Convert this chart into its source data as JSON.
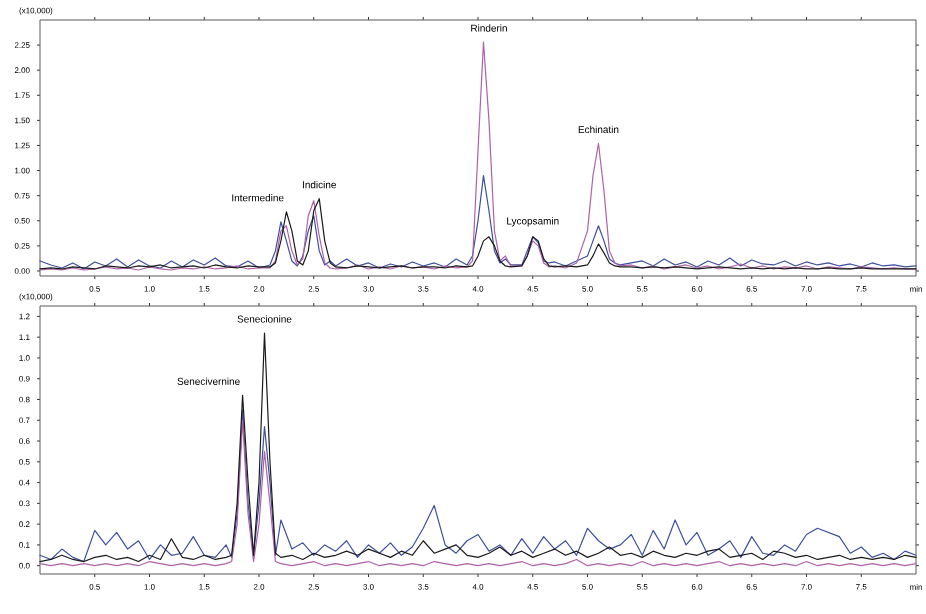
{
  "chart_data": [
    {
      "type": "line",
      "ylabel": "(x10,000)",
      "xlabel": "min",
      "x": [
        0.0,
        0.1,
        0.2,
        0.3,
        0.4,
        0.5,
        0.6,
        0.7,
        0.8,
        0.9,
        1.0,
        1.1,
        1.2,
        1.3,
        1.4,
        1.5,
        1.6,
        1.7,
        1.8,
        1.9,
        2.0,
        2.1,
        2.15,
        2.2,
        2.25,
        2.3,
        2.35,
        2.4,
        2.45,
        2.5,
        2.55,
        2.6,
        2.65,
        2.7,
        2.8,
        2.9,
        3.0,
        3.1,
        3.2,
        3.3,
        3.4,
        3.5,
        3.6,
        3.7,
        3.8,
        3.9,
        3.95,
        4.0,
        4.05,
        4.1,
        4.15,
        4.2,
        4.25,
        4.3,
        4.4,
        4.45,
        4.5,
        4.55,
        4.6,
        4.65,
        4.7,
        4.8,
        4.9,
        5.0,
        5.05,
        5.1,
        5.15,
        5.2,
        5.25,
        5.3,
        5.4,
        5.5,
        5.6,
        5.7,
        5.8,
        5.9,
        6.0,
        6.1,
        6.2,
        6.3,
        6.4,
        6.5,
        6.6,
        6.7,
        6.8,
        6.9,
        7.0,
        7.1,
        7.2,
        7.3,
        7.4,
        7.5,
        7.6,
        7.7,
        7.8,
        7.9,
        8.0
      ],
      "series": [
        {
          "color": "#3d4f9f",
          "values": [
            0.1,
            0.06,
            0.03,
            0.08,
            0.02,
            0.09,
            0.05,
            0.12,
            0.04,
            0.11,
            0.05,
            0.03,
            0.1,
            0.04,
            0.11,
            0.06,
            0.13,
            0.05,
            0.04,
            0.1,
            0.03,
            0.06,
            0.2,
            0.49,
            0.3,
            0.1,
            0.05,
            0.15,
            0.4,
            0.55,
            0.2,
            0.06,
            0.1,
            0.05,
            0.12,
            0.05,
            0.08,
            0.03,
            0.07,
            0.04,
            0.09,
            0.05,
            0.08,
            0.04,
            0.12,
            0.06,
            0.15,
            0.5,
            0.95,
            0.6,
            0.2,
            0.08,
            0.12,
            0.06,
            0.06,
            0.2,
            0.34,
            0.28,
            0.1,
            0.08,
            0.09,
            0.05,
            0.1,
            0.15,
            0.3,
            0.45,
            0.3,
            0.12,
            0.08,
            0.06,
            0.08,
            0.1,
            0.05,
            0.12,
            0.06,
            0.09,
            0.04,
            0.1,
            0.06,
            0.13,
            0.05,
            0.11,
            0.07,
            0.06,
            0.1,
            0.05,
            0.09,
            0.06,
            0.08,
            0.05,
            0.07,
            0.04,
            0.08,
            0.05,
            0.06,
            0.04,
            0.05
          ]
        },
        {
          "color": "#b060a8",
          "values": [
            0.01,
            0.02,
            0.01,
            0.03,
            0.01,
            0.02,
            0.04,
            0.02,
            0.03,
            0.01,
            0.04,
            0.02,
            0.01,
            0.03,
            0.02,
            0.04,
            0.02,
            0.03,
            0.05,
            0.02,
            0.03,
            0.03,
            0.1,
            0.4,
            0.45,
            0.2,
            0.06,
            0.12,
            0.55,
            0.7,
            0.35,
            0.08,
            0.03,
            0.02,
            0.03,
            0.06,
            0.02,
            0.04,
            0.02,
            0.05,
            0.03,
            0.04,
            0.02,
            0.05,
            0.03,
            0.04,
            0.1,
            1.2,
            2.28,
            1.5,
            0.4,
            0.1,
            0.15,
            0.05,
            0.05,
            0.15,
            0.3,
            0.25,
            0.08,
            0.04,
            0.05,
            0.03,
            0.08,
            0.4,
            0.95,
            1.27,
            0.8,
            0.2,
            0.08,
            0.05,
            0.06,
            0.03,
            0.05,
            0.02,
            0.04,
            0.06,
            0.03,
            0.05,
            0.02,
            0.04,
            0.07,
            0.03,
            0.05,
            0.02,
            0.04,
            0.03,
            0.05,
            0.02,
            0.04,
            0.03,
            0.02,
            0.04,
            0.03,
            0.02,
            0.03,
            0.02,
            0.02
          ]
        },
        {
          "color": "#1a1a1a",
          "values": [
            0.02,
            0.03,
            0.02,
            0.04,
            0.03,
            0.02,
            0.05,
            0.04,
            0.03,
            0.05,
            0.04,
            0.06,
            0.03,
            0.04,
            0.05,
            0.03,
            0.06,
            0.04,
            0.03,
            0.05,
            0.04,
            0.04,
            0.08,
            0.3,
            0.59,
            0.4,
            0.1,
            0.06,
            0.2,
            0.6,
            0.72,
            0.3,
            0.08,
            0.04,
            0.03,
            0.05,
            0.04,
            0.03,
            0.04,
            0.05,
            0.03,
            0.04,
            0.04,
            0.03,
            0.05,
            0.04,
            0.05,
            0.15,
            0.3,
            0.34,
            0.25,
            0.1,
            0.05,
            0.04,
            0.05,
            0.15,
            0.34,
            0.3,
            0.12,
            0.05,
            0.04,
            0.05,
            0.04,
            0.06,
            0.15,
            0.27,
            0.18,
            0.08,
            0.05,
            0.04,
            0.04,
            0.03,
            0.04,
            0.03,
            0.04,
            0.03,
            0.02,
            0.03,
            0.04,
            0.03,
            0.02,
            0.03,
            0.02,
            0.03,
            0.02,
            0.03,
            0.02,
            0.02,
            0.03,
            0.02,
            0.02,
            0.03,
            0.02,
            0.02,
            0.02,
            0.02,
            0.02
          ]
        }
      ],
      "xlim": [
        0,
        8.0
      ],
      "ylim": [
        -0.05,
        2.5
      ],
      "xticks": [
        {
          "value": 0.5,
          "label": "0.5"
        },
        {
          "value": 1.0,
          "label": "1.0"
        },
        {
          "value": 1.5,
          "label": "1.5"
        },
        {
          "value": 2.0,
          "label": "2.0"
        },
        {
          "value": 2.5,
          "label": "2.5"
        },
        {
          "value": 3.0,
          "label": "3.0"
        },
        {
          "value": 3.5,
          "label": "3.5"
        },
        {
          "value": 4.0,
          "label": "4.0"
        },
        {
          "value": 4.5,
          "label": "4.5"
        },
        {
          "value": 5.0,
          "label": "5.0"
        },
        {
          "value": 5.5,
          "label": "5.5"
        },
        {
          "value": 6.0,
          "label": "6.0"
        },
        {
          "value": 6.5,
          "label": "6.5"
        },
        {
          "value": 7.0,
          "label": "7.0"
        },
        {
          "value": 7.5,
          "label": "7.5"
        }
      ],
      "yticks": [
        {
          "value": 0,
          "label": "0.00"
        },
        {
          "value": 0.25,
          "label": "0.25"
        },
        {
          "value": 0.5,
          "label": "0.50"
        },
        {
          "value": 0.75,
          "label": "0.75"
        },
        {
          "value": 1.0,
          "label": "1.00"
        },
        {
          "value": 1.25,
          "label": "1.25"
        },
        {
          "value": 1.5,
          "label": "1.50"
        },
        {
          "value": 1.75,
          "label": "1.75"
        },
        {
          "value": 2.0,
          "label": "2.00"
        },
        {
          "value": 2.25,
          "label": "2.25"
        }
      ],
      "annotations": [
        {
          "text": "Intermedine",
          "x": 2.25,
          "y": 0.59
        },
        {
          "text": "Indicine",
          "x": 2.55,
          "y": 0.72
        },
        {
          "text": "Rinderin",
          "x": 4.1,
          "y": 2.28
        },
        {
          "text": "Lycopsamin",
          "x": 4.5,
          "y": 0.34
        },
        {
          "text": "Echinatin",
          "x": 5.1,
          "y": 1.27
        }
      ]
    },
    {
      "type": "line",
      "ylabel": "(x10,000)",
      "xlabel": "min",
      "x": [
        0.0,
        0.1,
        0.2,
        0.3,
        0.4,
        0.5,
        0.6,
        0.7,
        0.8,
        0.9,
        1.0,
        1.1,
        1.2,
        1.3,
        1.4,
        1.5,
        1.6,
        1.7,
        1.75,
        1.8,
        1.85,
        1.9,
        1.95,
        2.0,
        2.05,
        2.1,
        2.15,
        2.2,
        2.3,
        2.4,
        2.5,
        2.6,
        2.7,
        2.8,
        2.9,
        3.0,
        3.1,
        3.2,
        3.3,
        3.4,
        3.5,
        3.6,
        3.7,
        3.8,
        3.9,
        4.0,
        4.1,
        4.2,
        4.3,
        4.4,
        4.5,
        4.6,
        4.7,
        4.8,
        4.9,
        5.0,
        5.1,
        5.2,
        5.3,
        5.4,
        5.5,
        5.6,
        5.7,
        5.8,
        5.9,
        6.0,
        6.1,
        6.2,
        6.3,
        6.4,
        6.5,
        6.6,
        6.7,
        6.8,
        6.9,
        7.0,
        7.1,
        7.2,
        7.3,
        7.4,
        7.5,
        7.6,
        7.7,
        7.8,
        7.9,
        8.0
      ],
      "series": [
        {
          "color": "#3d4f9f",
          "values": [
            0.05,
            0.03,
            0.08,
            0.04,
            0.02,
            0.17,
            0.1,
            0.16,
            0.08,
            0.12,
            0.03,
            0.1,
            0.05,
            0.06,
            0.14,
            0.05,
            0.04,
            0.1,
            0.04,
            0.25,
            0.75,
            0.3,
            0.05,
            0.3,
            0.67,
            0.4,
            0.05,
            0.22,
            0.08,
            0.11,
            0.05,
            0.1,
            0.07,
            0.12,
            0.04,
            0.1,
            0.06,
            0.11,
            0.05,
            0.09,
            0.18,
            0.29,
            0.1,
            0.06,
            0.12,
            0.15,
            0.07,
            0.1,
            0.05,
            0.13,
            0.06,
            0.14,
            0.08,
            0.12,
            0.05,
            0.18,
            0.12,
            0.08,
            0.1,
            0.15,
            0.05,
            0.17,
            0.08,
            0.22,
            0.1,
            0.16,
            0.05,
            0.08,
            0.12,
            0.04,
            0.14,
            0.06,
            0.05,
            0.1,
            0.07,
            0.15,
            0.18,
            0.16,
            0.14,
            0.06,
            0.09,
            0.04,
            0.06,
            0.03,
            0.07,
            0.05
          ]
        },
        {
          "color": "#b060a8",
          "values": [
            0.01,
            0.0,
            0.01,
            0.0,
            0.01,
            0.0,
            0.01,
            0.0,
            0.01,
            0.0,
            0.02,
            0.01,
            0.0,
            0.01,
            0.0,
            0.01,
            0.0,
            0.01,
            0.02,
            0.2,
            0.7,
            0.25,
            0.02,
            0.2,
            0.55,
            0.3,
            0.02,
            0.01,
            0.0,
            0.01,
            0.02,
            0.0,
            0.01,
            0.0,
            0.01,
            0.02,
            0.0,
            0.01,
            0.0,
            0.01,
            0.0,
            0.02,
            0.01,
            0.0,
            0.01,
            0.0,
            0.01,
            0.0,
            0.01,
            0.02,
            0.0,
            0.01,
            0.0,
            0.01,
            0.03,
            0.0,
            0.01,
            0.0,
            0.01,
            0.0,
            0.02,
            0.0,
            0.01,
            0.0,
            0.01,
            0.0,
            0.01,
            0.02,
            0.0,
            0.01,
            0.0,
            0.01,
            0.0,
            0.01,
            0.0,
            0.02,
            0.0,
            0.01,
            0.0,
            0.01,
            0.0,
            0.01,
            0.0,
            0.01,
            0.0,
            0.01
          ]
        },
        {
          "color": "#1a1a1a",
          "values": [
            0.02,
            0.03,
            0.05,
            0.03,
            0.02,
            0.04,
            0.05,
            0.03,
            0.04,
            0.02,
            0.05,
            0.03,
            0.13,
            0.04,
            0.03,
            0.05,
            0.03,
            0.04,
            0.05,
            0.3,
            0.82,
            0.4,
            0.05,
            0.4,
            1.12,
            0.5,
            0.06,
            0.04,
            0.05,
            0.03,
            0.06,
            0.04,
            0.05,
            0.07,
            0.05,
            0.08,
            0.06,
            0.04,
            0.07,
            0.05,
            0.12,
            0.06,
            0.08,
            0.1,
            0.05,
            0.04,
            0.06,
            0.09,
            0.05,
            0.07,
            0.04,
            0.06,
            0.08,
            0.05,
            0.07,
            0.04,
            0.06,
            0.09,
            0.05,
            0.06,
            0.04,
            0.07,
            0.05,
            0.04,
            0.06,
            0.05,
            0.07,
            0.08,
            0.04,
            0.05,
            0.06,
            0.03,
            0.07,
            0.06,
            0.04,
            0.05,
            0.03,
            0.04,
            0.05,
            0.03,
            0.04,
            0.03,
            0.04,
            0.03,
            0.05,
            0.04
          ]
        }
      ],
      "xlim": [
        0,
        8.0
      ],
      "ylim": [
        -0.04,
        1.25
      ],
      "xticks": [
        {
          "value": 0.5,
          "label": "0.5"
        },
        {
          "value": 1.0,
          "label": "1.0"
        },
        {
          "value": 1.5,
          "label": "1.5"
        },
        {
          "value": 2.0,
          "label": "2.0"
        },
        {
          "value": 2.5,
          "label": "2.5"
        },
        {
          "value": 3.0,
          "label": "3.0"
        },
        {
          "value": 3.5,
          "label": "3.5"
        },
        {
          "value": 4.0,
          "label": "4.0"
        },
        {
          "value": 4.5,
          "label": "4.5"
        },
        {
          "value": 5.0,
          "label": "5.0"
        },
        {
          "value": 5.5,
          "label": "5.5"
        },
        {
          "value": 6.0,
          "label": "6.0"
        },
        {
          "value": 6.5,
          "label": "6.5"
        },
        {
          "value": 7.0,
          "label": "7.0"
        },
        {
          "value": 7.5,
          "label": "7.5"
        }
      ],
      "yticks": [
        {
          "value": 0,
          "label": "0.0"
        },
        {
          "value": 0.1,
          "label": "0.1"
        },
        {
          "value": 0.2,
          "label": "0.2"
        },
        {
          "value": 0.3,
          "label": "0.3"
        },
        {
          "value": 0.4,
          "label": "0.4"
        },
        {
          "value": 0.5,
          "label": "0.5"
        },
        {
          "value": 0.6,
          "label": "0.6"
        },
        {
          "value": 0.7,
          "label": "0.7"
        },
        {
          "value": 0.8,
          "label": "0.8"
        },
        {
          "value": 0.9,
          "label": "0.9"
        },
        {
          "value": 1.0,
          "label": "1.0"
        },
        {
          "value": 1.1,
          "label": "1.1"
        },
        {
          "value": 1.2,
          "label": "1.2"
        }
      ],
      "annotations": [
        {
          "text": "Senecivernine",
          "x": 1.85,
          "y": 0.82
        },
        {
          "text": "Senecionine",
          "x": 2.05,
          "y": 1.12
        }
      ]
    }
  ]
}
